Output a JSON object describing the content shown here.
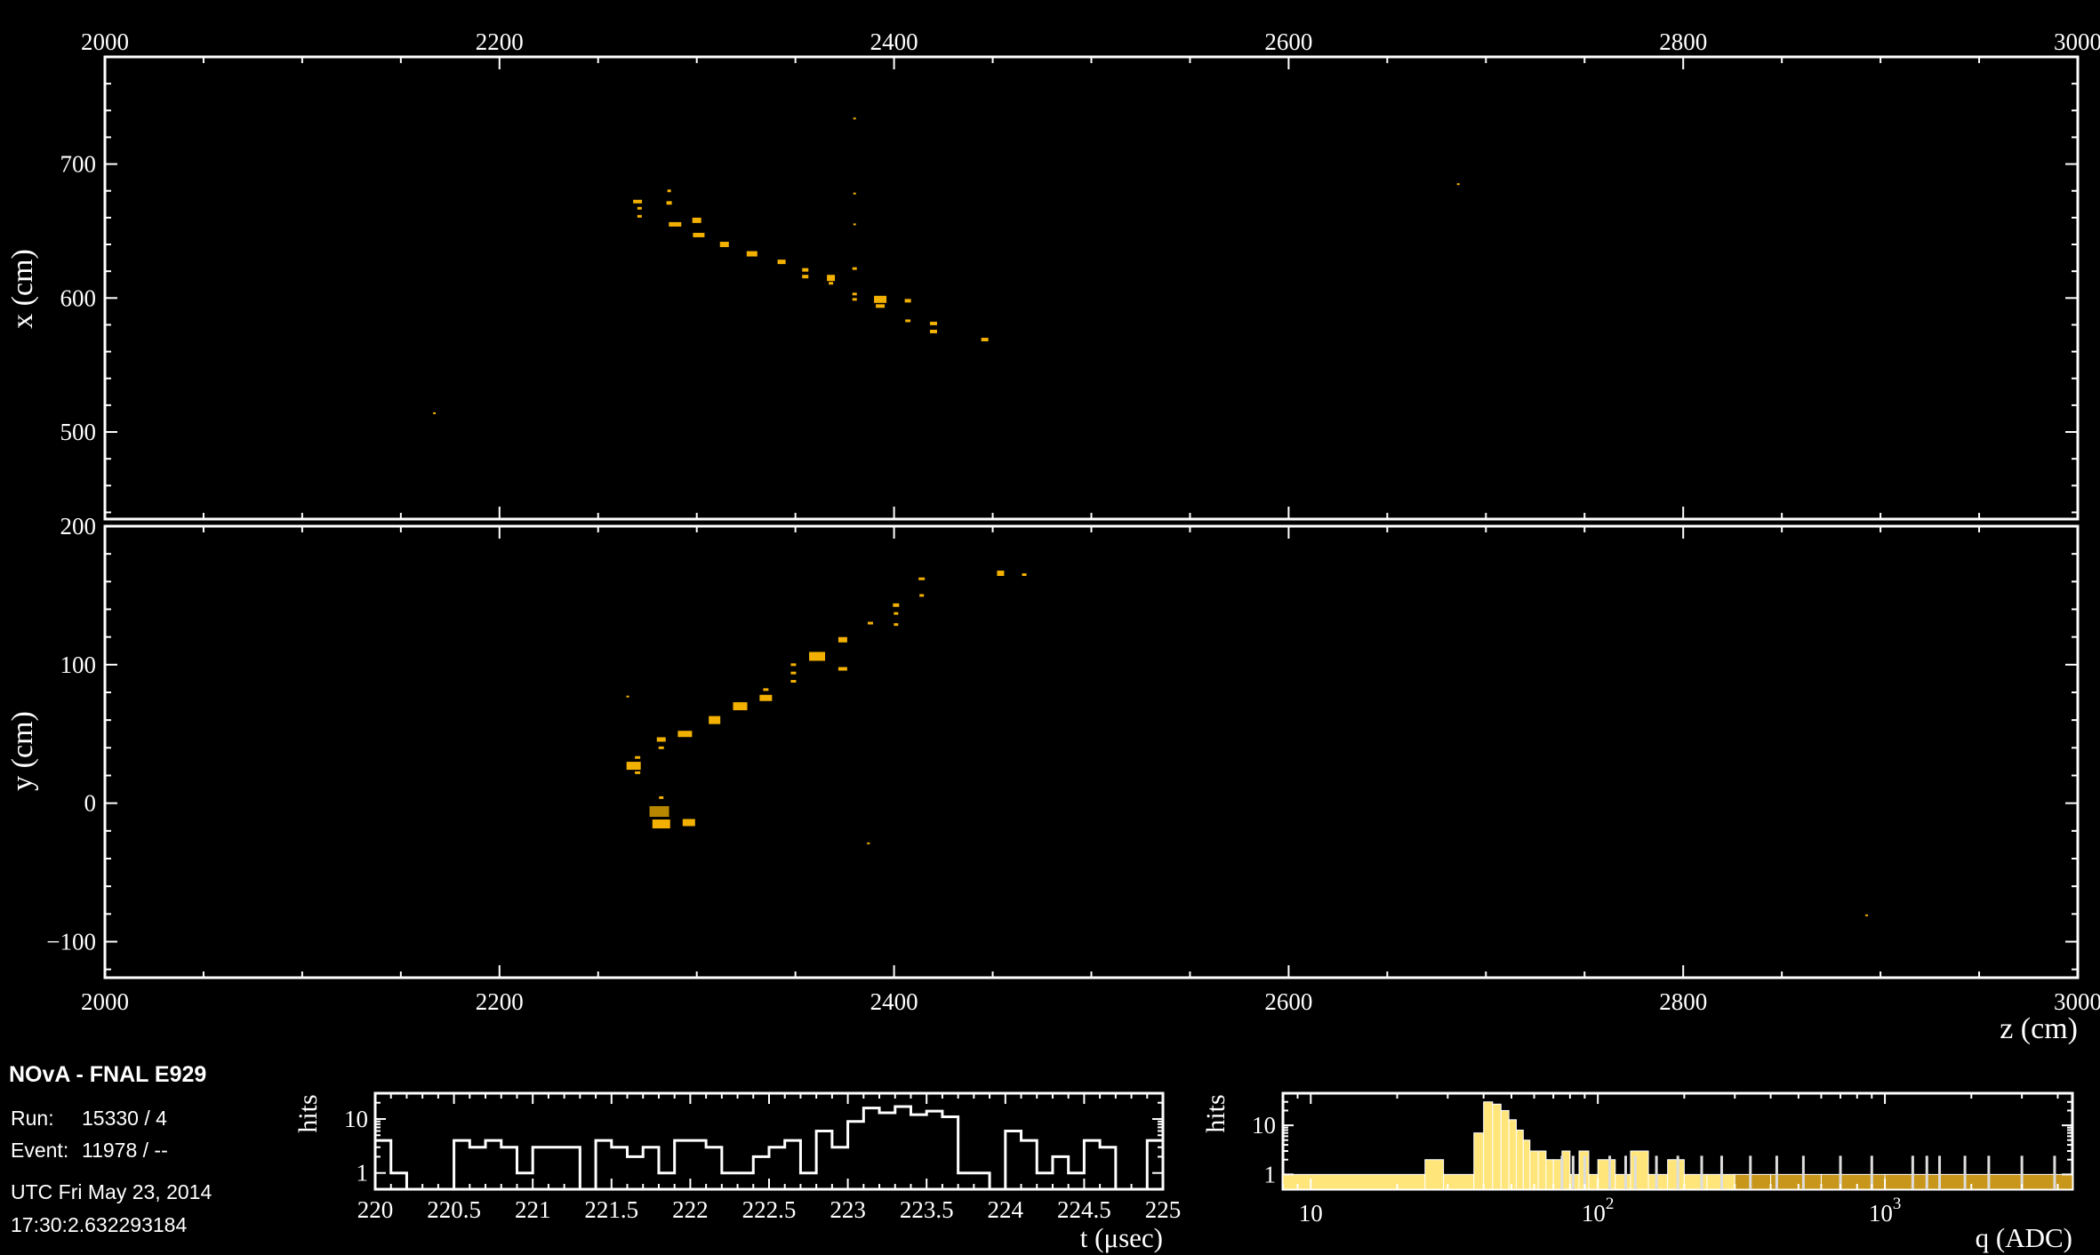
{
  "title": "NOvA - FNAL E929",
  "run_label": "Run:",
  "run_value": "15330 / 4",
  "event_label": "Event:",
  "event_value": "11978 / --",
  "utc_line1": "UTC Fri May 23, 2014",
  "utc_line2": "17:30:2.632293184",
  "colors": {
    "background": "#000000",
    "frame": "#ffffff",
    "hit": "#f2b000",
    "hit_dark": "#b88700",
    "hist_fill": "#ffe57a",
    "hist_fill_dark": "#c8961a"
  },
  "chart_data": [
    {
      "type": "scatter",
      "name": "xz-view",
      "ylabel": "x (cm)",
      "xlim": [
        2000,
        3000
      ],
      "ylim": [
        435,
        780
      ],
      "x_ticks": [
        2000,
        2200,
        2400,
        2600,
        2800,
        3000
      ],
      "x_tick_labels": [
        "2000",
        "2200",
        "2400",
        "2600",
        "2800",
        "3000"
      ],
      "y_ticks": [
        500,
        600,
        700
      ],
      "y_tick_labels": [
        "500",
        "600",
        "700"
      ],
      "points": [
        {
          "z": 2270,
          "v": 672,
          "w": 10,
          "h": 4
        },
        {
          "z": 2271,
          "v": 667,
          "w": 5,
          "h": 3
        },
        {
          "z": 2271,
          "v": 661,
          "w": 5,
          "h": 3
        },
        {
          "z": 2286,
          "v": 680,
          "w": 4,
          "h": 3
        },
        {
          "z": 2286,
          "v": 671,
          "w": 6,
          "h": 4
        },
        {
          "z": 2289,
          "v": 655,
          "w": 14,
          "h": 5
        },
        {
          "z": 2300,
          "v": 658,
          "w": 10,
          "h": 6
        },
        {
          "z": 2301,
          "v": 647,
          "w": 13,
          "h": 5
        },
        {
          "z": 2314,
          "v": 640,
          "w": 10,
          "h": 6
        },
        {
          "z": 2328,
          "v": 633,
          "w": 12,
          "h": 6
        },
        {
          "z": 2343,
          "v": 627,
          "w": 9,
          "h": 5
        },
        {
          "z": 2355,
          "v": 621,
          "w": 7,
          "h": 4
        },
        {
          "z": 2355,
          "v": 616,
          "w": 7,
          "h": 4
        },
        {
          "z": 2368,
          "v": 615,
          "w": 9,
          "h": 7
        },
        {
          "z": 2368,
          "v": 611,
          "w": 5,
          "h": 3
        },
        {
          "z": 2380,
          "v": 622,
          "w": 5,
          "h": 3
        },
        {
          "z": 2380,
          "v": 603,
          "w": 5,
          "h": 3
        },
        {
          "z": 2380,
          "v": 599,
          "w": 5,
          "h": 3
        },
        {
          "z": 2393,
          "v": 599,
          "w": 14,
          "h": 8
        },
        {
          "z": 2393,
          "v": 594,
          "w": 10,
          "h": 4
        },
        {
          "z": 2407,
          "v": 598,
          "w": 7,
          "h": 4
        },
        {
          "z": 2407,
          "v": 583,
          "w": 6,
          "h": 3
        },
        {
          "z": 2420,
          "v": 581,
          "w": 8,
          "h": 4
        },
        {
          "z": 2420,
          "v": 575,
          "w": 8,
          "h": 4
        },
        {
          "z": 2446,
          "v": 569,
          "w": 8,
          "h": 4
        },
        {
          "z": 2380,
          "v": 734,
          "w": 3,
          "h": 2
        },
        {
          "z": 2380,
          "v": 678,
          "w": 3,
          "h": 2
        },
        {
          "z": 2380,
          "v": 655,
          "w": 3,
          "h": 2
        },
        {
          "z": 2686,
          "v": 685,
          "w": 3,
          "h": 2
        },
        {
          "z": 2167,
          "v": 514,
          "w": 3,
          "h": 2
        }
      ]
    },
    {
      "type": "scatter",
      "name": "yz-view",
      "ylabel": "y (cm)",
      "xlabel": "z (cm)",
      "xlim": [
        2000,
        3000
      ],
      "ylim": [
        -126,
        200
      ],
      "x_ticks": [
        2000,
        2200,
        2400,
        2600,
        2800,
        3000
      ],
      "x_tick_labels": [
        "2000",
        "2200",
        "2400",
        "2600",
        "2800",
        "3000"
      ],
      "y_ticks": [
        -100,
        0,
        100,
        200
      ],
      "y_tick_labels": [
        "−100",
        "0",
        "100",
        "200"
      ],
      "points": [
        {
          "z": 2268,
          "v": 27,
          "w": 16,
          "h": 9
        },
        {
          "z": 2270,
          "v": 33,
          "w": 6,
          "h": 3
        },
        {
          "z": 2270,
          "v": 22,
          "w": 6,
          "h": 3
        },
        {
          "z": 2281,
          "v": -6,
          "w": 22,
          "h": 12,
          "dark": true
        },
        {
          "z": 2282,
          "v": -15,
          "w": 20,
          "h": 10
        },
        {
          "z": 2282,
          "v": 4,
          "w": 5,
          "h": 3
        },
        {
          "z": 2296,
          "v": -14,
          "w": 14,
          "h": 8
        },
        {
          "z": 2282,
          "v": 46,
          "w": 10,
          "h": 5
        },
        {
          "z": 2282,
          "v": 40,
          "w": 6,
          "h": 3
        },
        {
          "z": 2294,
          "v": 50,
          "w": 16,
          "h": 7
        },
        {
          "z": 2309,
          "v": 60,
          "w": 13,
          "h": 9
        },
        {
          "z": 2322,
          "v": 70,
          "w": 16,
          "h": 9
        },
        {
          "z": 2335,
          "v": 76,
          "w": 14,
          "h": 7
        },
        {
          "z": 2335,
          "v": 82,
          "w": 6,
          "h": 3
        },
        {
          "z": 2349,
          "v": 100,
          "w": 6,
          "h": 3
        },
        {
          "z": 2349,
          "v": 94,
          "w": 6,
          "h": 3
        },
        {
          "z": 2349,
          "v": 88,
          "w": 6,
          "h": 3
        },
        {
          "z": 2361,
          "v": 106,
          "w": 18,
          "h": 10
        },
        {
          "z": 2374,
          "v": 118,
          "w": 10,
          "h": 6
        },
        {
          "z": 2374,
          "v": 97,
          "w": 10,
          "h": 4
        },
        {
          "z": 2388,
          "v": 130,
          "w": 6,
          "h": 3
        },
        {
          "z": 2401,
          "v": 143,
          "w": 7,
          "h": 4
        },
        {
          "z": 2401,
          "v": 137,
          "w": 5,
          "h": 3
        },
        {
          "z": 2401,
          "v": 129,
          "w": 5,
          "h": 3
        },
        {
          "z": 2414,
          "v": 162,
          "w": 7,
          "h": 3
        },
        {
          "z": 2414,
          "v": 150,
          "w": 5,
          "h": 3
        },
        {
          "z": 2454,
          "v": 166,
          "w": 8,
          "h": 6
        },
        {
          "z": 2466,
          "v": 165,
          "w": 5,
          "h": 3
        },
        {
          "z": 2265,
          "v": 77,
          "w": 3,
          "h": 2
        },
        {
          "z": 2387,
          "v": -29,
          "w": 3,
          "h": 2
        },
        {
          "z": 2893,
          "v": -81,
          "w": 3,
          "h": 2
        }
      ]
    },
    {
      "type": "histogram",
      "name": "time-hist",
      "xlabel": "t (μsec)",
      "ylabel": "hits",
      "xlim": [
        220,
        225
      ],
      "x_ticks": [
        220,
        220.5,
        221,
        221.5,
        222,
        222.5,
        223,
        223.5,
        224,
        224.5,
        225
      ],
      "x_tick_labels": [
        "220",
        "220.5",
        "221",
        "221.5",
        "222",
        "222.5",
        "223",
        "223.5",
        "224",
        "224.5",
        "225"
      ],
      "y_ticks": [
        1,
        10
      ],
      "y_tick_labels": [
        "1",
        "10"
      ],
      "y_scale": "log",
      "bin_width": 0.1,
      "bins": [
        {
          "start": 220.0,
          "count": 4
        },
        {
          "start": 220.1,
          "count": 1
        },
        {
          "start": 220.2,
          "count": 0
        },
        {
          "start": 220.3,
          "count": 0
        },
        {
          "start": 220.4,
          "count": 0
        },
        {
          "start": 220.5,
          "count": 4
        },
        {
          "start": 220.6,
          "count": 3
        },
        {
          "start": 220.7,
          "count": 4
        },
        {
          "start": 220.8,
          "count": 3
        },
        {
          "start": 220.9,
          "count": 1
        },
        {
          "start": 221.0,
          "count": 3
        },
        {
          "start": 221.1,
          "count": 3
        },
        {
          "start": 221.2,
          "count": 3
        },
        {
          "start": 221.3,
          "count": 0
        },
        {
          "start": 221.4,
          "count": 4
        },
        {
          "start": 221.5,
          "count": 3
        },
        {
          "start": 221.6,
          "count": 2
        },
        {
          "start": 221.7,
          "count": 3
        },
        {
          "start": 221.8,
          "count": 1
        },
        {
          "start": 221.9,
          "count": 4
        },
        {
          "start": 222.0,
          "count": 4
        },
        {
          "start": 222.1,
          "count": 3
        },
        {
          "start": 222.2,
          "count": 1
        },
        {
          "start": 222.3,
          "count": 1
        },
        {
          "start": 222.4,
          "count": 2
        },
        {
          "start": 222.5,
          "count": 3
        },
        {
          "start": 222.6,
          "count": 4
        },
        {
          "start": 222.7,
          "count": 1
        },
        {
          "start": 222.8,
          "count": 6
        },
        {
          "start": 222.9,
          "count": 3
        },
        {
          "start": 223.0,
          "count": 9
        },
        {
          "start": 223.1,
          "count": 16
        },
        {
          "start": 223.2,
          "count": 13
        },
        {
          "start": 223.3,
          "count": 17
        },
        {
          "start": 223.4,
          "count": 12
        },
        {
          "start": 223.5,
          "count": 14
        },
        {
          "start": 223.6,
          "count": 11
        },
        {
          "start": 223.7,
          "count": 1
        },
        {
          "start": 223.8,
          "count": 1
        },
        {
          "start": 223.9,
          "count": 0
        },
        {
          "start": 224.0,
          "count": 6
        },
        {
          "start": 224.1,
          "count": 4
        },
        {
          "start": 224.2,
          "count": 1
        },
        {
          "start": 224.3,
          "count": 2
        },
        {
          "start": 224.4,
          "count": 1
        },
        {
          "start": 224.5,
          "count": 4
        },
        {
          "start": 224.6,
          "count": 3
        },
        {
          "start": 224.7,
          "count": 0
        },
        {
          "start": 224.8,
          "count": 0
        },
        {
          "start": 224.9,
          "count": 4
        }
      ]
    },
    {
      "type": "histogram",
      "name": "charge-hist",
      "xlabel": "q (ADC)",
      "ylabel": "hits",
      "x_scale": "log",
      "y_scale": "log",
      "xlim": [
        8,
        4500
      ],
      "x_ticks": [
        10,
        100,
        1000
      ],
      "x_tick_labels": [
        "10",
        "10",
        "10"
      ],
      "x_tick_exponents": [
        "",
        "2",
        "3"
      ],
      "y_ticks": [
        1,
        10
      ],
      "y_tick_labels": [
        "1",
        "10"
      ],
      "bins": [
        {
          "lo": 8,
          "hi": 25,
          "count": 1
        },
        {
          "lo": 25,
          "hi": 29,
          "count": 2
        },
        {
          "lo": 29,
          "hi": 37,
          "count": 1
        },
        {
          "lo": 37,
          "hi": 40,
          "count": 7
        },
        {
          "lo": 40,
          "hi": 43,
          "count": 30
        },
        {
          "lo": 43,
          "hi": 46,
          "count": 27
        },
        {
          "lo": 46,
          "hi": 49,
          "count": 20
        },
        {
          "lo": 49,
          "hi": 52,
          "count": 13
        },
        {
          "lo": 52,
          "hi": 55,
          "count": 8
        },
        {
          "lo": 55,
          "hi": 58,
          "count": 5
        },
        {
          "lo": 58,
          "hi": 62,
          "count": 3
        },
        {
          "lo": 62,
          "hi": 66,
          "count": 3
        },
        {
          "lo": 66,
          "hi": 70,
          "count": 2
        },
        {
          "lo": 70,
          "hi": 75,
          "count": 2
        },
        {
          "lo": 75,
          "hi": 80,
          "count": 3
        },
        {
          "lo": 80,
          "hi": 86,
          "count": 1
        },
        {
          "lo": 86,
          "hi": 93,
          "count": 3
        },
        {
          "lo": 93,
          "hi": 100,
          "count": 1
        },
        {
          "lo": 100,
          "hi": 115,
          "count": 2
        },
        {
          "lo": 115,
          "hi": 130,
          "count": 1
        },
        {
          "lo": 130,
          "hi": 150,
          "count": 3
        },
        {
          "lo": 150,
          "hi": 175,
          "count": 1
        },
        {
          "lo": 175,
          "hi": 200,
          "count": 2
        },
        {
          "lo": 200,
          "hi": 240,
          "count": 1
        },
        {
          "lo": 240,
          "hi": 300,
          "count": 1
        },
        {
          "lo": 300,
          "hi": 400,
          "count": 1
        },
        {
          "lo": 400,
          "hi": 600,
          "count": 1
        },
        {
          "lo": 600,
          "hi": 1000,
          "count": 1
        },
        {
          "lo": 1000,
          "hi": 4500,
          "count": 1
        }
      ],
      "spikes": [
        75,
        82,
        90,
        110,
        125,
        135,
        160,
        190,
        230,
        270,
        340,
        420,
        520,
        700,
        900,
        1250,
        1400,
        1550,
        1900,
        2300,
        3000,
        3900
      ]
    }
  ]
}
